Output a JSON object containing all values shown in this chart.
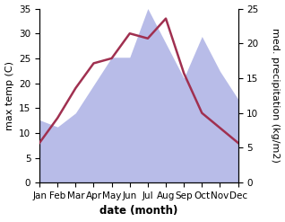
{
  "months": [
    "Jan",
    "Feb",
    "Mar",
    "Apr",
    "May",
    "Jun",
    "Jul",
    "Aug",
    "Sep",
    "Oct",
    "Nov",
    "Dec"
  ],
  "temperature": [
    8,
    13,
    19,
    24,
    25,
    30,
    29,
    33,
    22,
    14,
    11,
    8
  ],
  "precipitation": [
    9,
    8,
    10,
    14,
    18,
    18,
    25,
    20,
    15,
    21,
    16,
    12
  ],
  "temp_color": "#a03050",
  "precip_color_fill": "#b8bce8",
  "temp_ylim": [
    0,
    35
  ],
  "precip_ylim": [
    0,
    25
  ],
  "temp_yticks": [
    0,
    5,
    10,
    15,
    20,
    25,
    30,
    35
  ],
  "precip_yticks": [
    0,
    5,
    10,
    15,
    20,
    25
  ],
  "xlabel": "date (month)",
  "ylabel_left": "max temp (C)",
  "ylabel_right": "med. precipitation (kg/m2)",
  "label_fontsize": 8,
  "tick_fontsize": 7.5
}
